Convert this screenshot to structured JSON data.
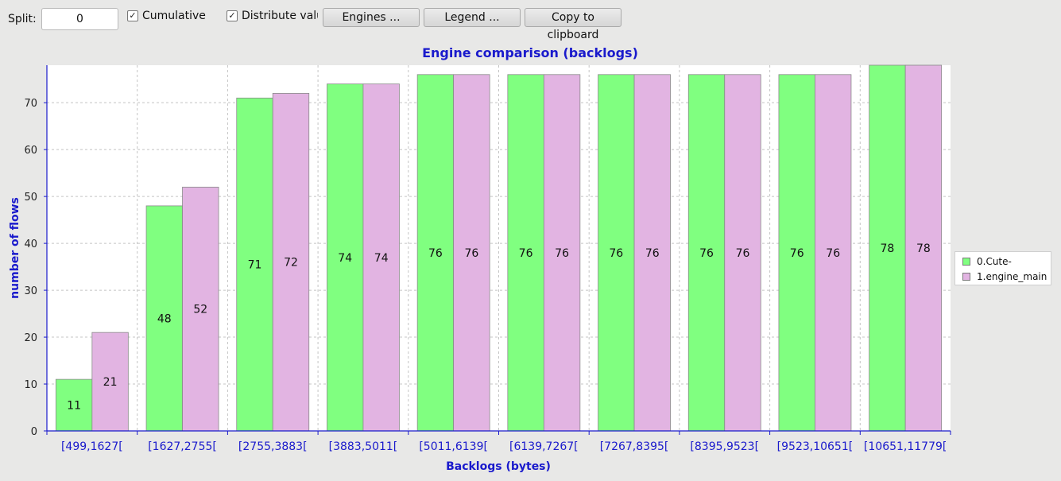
{
  "toolbar": {
    "split_label": "Split:",
    "split_value": "0",
    "cumulative_label": "Cumulative",
    "cumulative_checked": true,
    "distribute_label": "Distribute values",
    "distribute_checked": true,
    "engines_label": "Engines ...",
    "legend_label": "Legend ...",
    "copy_label": "Copy to clipboard"
  },
  "chart_data": {
    "type": "bar",
    "title": "Engine comparison (backlogs)",
    "xlabel": "Backlogs (bytes)",
    "ylabel": "number of flows",
    "ylim": [
      0,
      78
    ],
    "yticks": [
      0,
      10,
      20,
      30,
      40,
      50,
      60,
      70
    ],
    "grid": true,
    "legend_position": "right",
    "categories": [
      "[499,1627[",
      "[1627,2755[",
      "[2755,3883[",
      "[3883,5011[",
      "[5011,6139[",
      "[6139,7267[",
      "[7267,8395[",
      "[8395,9523[",
      "[9523,10651[",
      "[10651,11779["
    ],
    "series": [
      {
        "name": "0.Cute-",
        "color": "#80ff80",
        "values": [
          11,
          48,
          71,
          74,
          76,
          76,
          76,
          76,
          76,
          78
        ]
      },
      {
        "name": "1.engine_main",
        "color": "#e2b4e2",
        "values": [
          21,
          52,
          72,
          74,
          76,
          76,
          76,
          76,
          76,
          78
        ]
      }
    ],
    "axis_color": "#1a1acc",
    "title_color": "#1a1acc"
  }
}
